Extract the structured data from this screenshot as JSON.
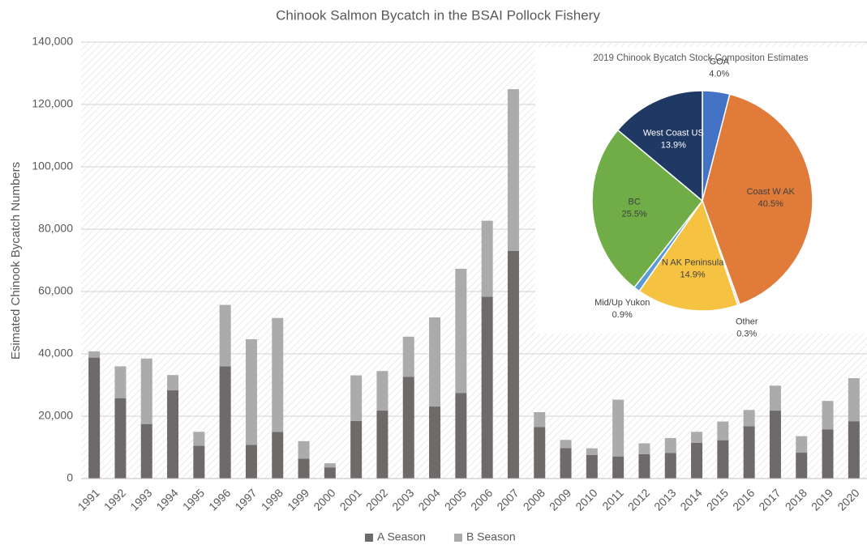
{
  "chart_data": [
    {
      "type": "bar",
      "stacked": true,
      "title": "Chinook Salmon Bycatch in the BSAI Pollock Fishery",
      "ylabel": "Esimated Chinook Bycatch Numbers",
      "categories": [
        "1991",
        "1992",
        "1993",
        "1994",
        "1995",
        "1996",
        "1997",
        "1998",
        "1999",
        "2000",
        "2001",
        "2002",
        "2003",
        "2004",
        "2005",
        "2006",
        "2007",
        "2008",
        "2009",
        "2010",
        "2011",
        "2012",
        "2013",
        "2014",
        "2015",
        "2016",
        "2017",
        "2018",
        "2019",
        "2020"
      ],
      "series": [
        {
          "name": "A Season",
          "color": "#6e6a6a",
          "values": [
            38800,
            25800,
            17500,
            28300,
            10500,
            36000,
            10800,
            15000,
            6400,
            3600,
            18500,
            21800,
            32600,
            23100,
            27400,
            58300,
            73000,
            16500,
            9800,
            7600,
            7100,
            7800,
            8200,
            11500,
            12300,
            16800,
            21800,
            8300,
            15800,
            18400
          ]
        },
        {
          "name": "B Season",
          "color": "#ababab",
          "values": [
            2000,
            10200,
            21000,
            4900,
            4500,
            19700,
            33900,
            36500,
            5600,
            1300,
            14600,
            12700,
            12900,
            28600,
            39900,
            24400,
            51900,
            4800,
            2600,
            2100,
            18200,
            3500,
            4800,
            3500,
            6000,
            5200,
            8000,
            5300,
            9100,
            13800
          ]
        }
      ],
      "ylim": [
        0,
        140000
      ],
      "yticks": [
        0,
        {
          "value": 20000,
          "label": "20,000"
        },
        {
          "value": 40000,
          "label": "40,000"
        },
        {
          "value": 60000,
          "label": "60,000"
        },
        {
          "value": 80000,
          "label": "80,000"
        },
        {
          "value": 100000,
          "label": "100,000"
        },
        {
          "value": 120000,
          "label": "120,000"
        },
        {
          "value": 140000,
          "label": "140,000"
        }
      ],
      "grid": true,
      "legend": "bottom"
    },
    {
      "type": "pie",
      "title": "2019 Chinook Bycatch Stock Compositon Estimates",
      "categories": [
        "GOA",
        "Coast W AK",
        "Other",
        "N AK Peninsula",
        "Mid/Up Yukon",
        "BC",
        "West Coast US"
      ],
      "values": [
        4.0,
        40.5,
        0.3,
        14.9,
        0.9,
        25.5,
        13.9
      ],
      "value_labels": [
        "4.0%",
        "40.5%",
        "0.3%",
        "14.9%",
        "0.9%",
        "25.5%",
        "13.9%"
      ],
      "colors": [
        "#4472c4",
        "#e07b39",
        "#d9d9d9",
        "#f5c242",
        "#5b9bd5",
        "#70ad47",
        "#203864"
      ]
    }
  ]
}
